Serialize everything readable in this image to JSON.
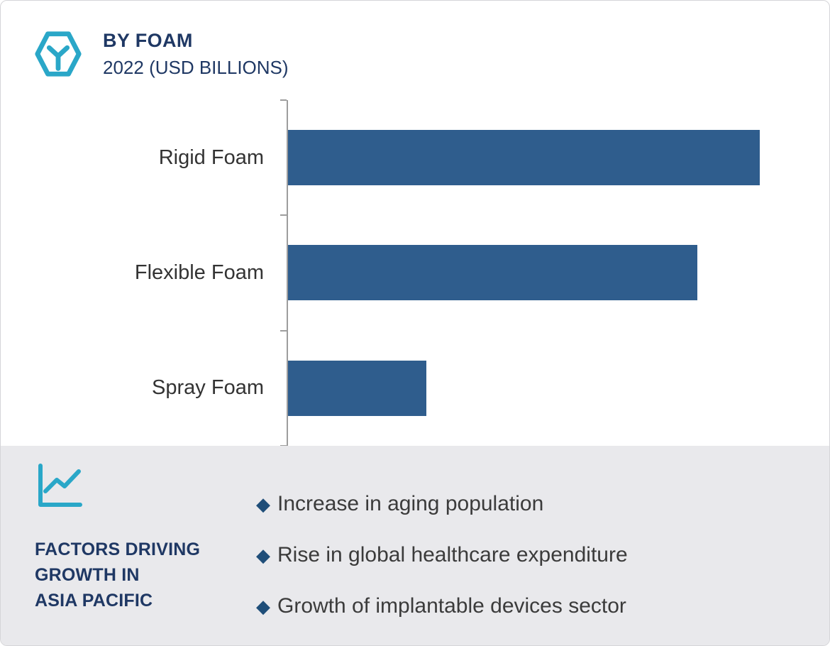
{
  "header": {
    "title": "BY FOAM",
    "subtitle": "2022 (USD BILLIONS)",
    "icon": "hexagon-y-logo-icon"
  },
  "chart_data": {
    "type": "bar",
    "orientation": "horizontal",
    "title": "BY FOAM",
    "subtitle": "2022 (USD BILLIONS)",
    "unit": "USD Billions",
    "categories": [
      "Rigid Foam",
      "Flexible Foam",
      "Spray Foam"
    ],
    "values_pct_of_max": [
      100,
      86.8,
      29.3
    ],
    "value_labels_shown": false,
    "axis_tick_labels_shown": false,
    "grid": false,
    "legend": false,
    "bar_color": "#2f5d8d",
    "axis_color": "#9d9d9d"
  },
  "factors": {
    "icon": "line-chart-icon",
    "title": "FACTORS DRIVING\nGROWTH IN\nASIA PACIFIC",
    "bullet": "◆",
    "items": [
      "Increase in aging population",
      "Rise in global healthcare expenditure",
      "Growth of implantable devices sector"
    ]
  },
  "colors": {
    "navy_text": "#1f3864",
    "bar_blue": "#2f5d8d",
    "diamond_navy": "#1f4e79",
    "teal_icon": "#2aa7c8",
    "panel_background": "#e9e9ec",
    "body_text": "#3b3b3b"
  }
}
